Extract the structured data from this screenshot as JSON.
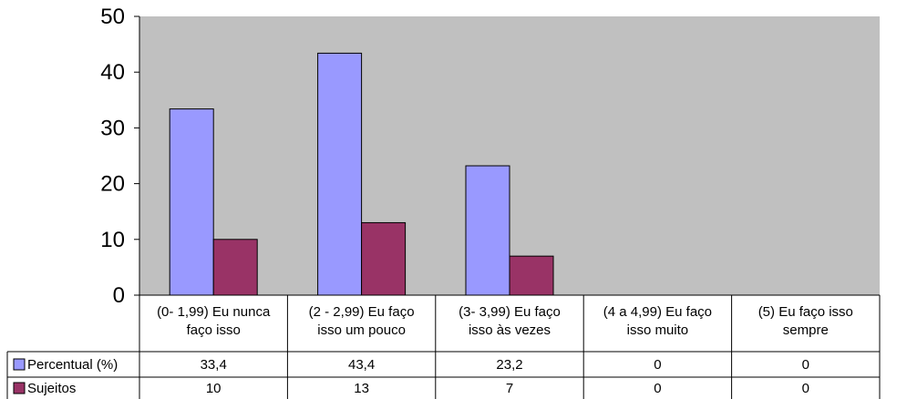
{
  "chart_data": {
    "type": "bar",
    "categories": [
      [
        "(0- 1,99) Eu nunca",
        "faço isso"
      ],
      [
        "(2 - 2,99) Eu faço",
        "isso um pouco"
      ],
      [
        "(3- 3,99) Eu faço",
        "isso às vezes"
      ],
      [
        "(4 a 4,99) Eu faço",
        "isso muito"
      ],
      [
        "(5) Eu faço isso",
        "sempre"
      ]
    ],
    "series": [
      {
        "name": "Percentual (%)",
        "values": [
          33.4,
          43.4,
          23.2,
          0,
          0
        ],
        "labels": [
          "33,4",
          "43,4",
          "23,2",
          "0",
          "0"
        ],
        "color": "#9999ff"
      },
      {
        "name": "Sujeitos",
        "values": [
          10,
          13,
          7,
          0,
          0
        ],
        "labels": [
          "10",
          "13",
          "7",
          "0",
          "0"
        ],
        "color": "#993366"
      }
    ],
    "y_ticks": [
      "0",
      "10",
      "20",
      "30",
      "40",
      "50"
    ],
    "ylim": [
      0,
      50
    ],
    "plot_background": "#c0c0c0",
    "grid": false,
    "legend": "data-table"
  }
}
